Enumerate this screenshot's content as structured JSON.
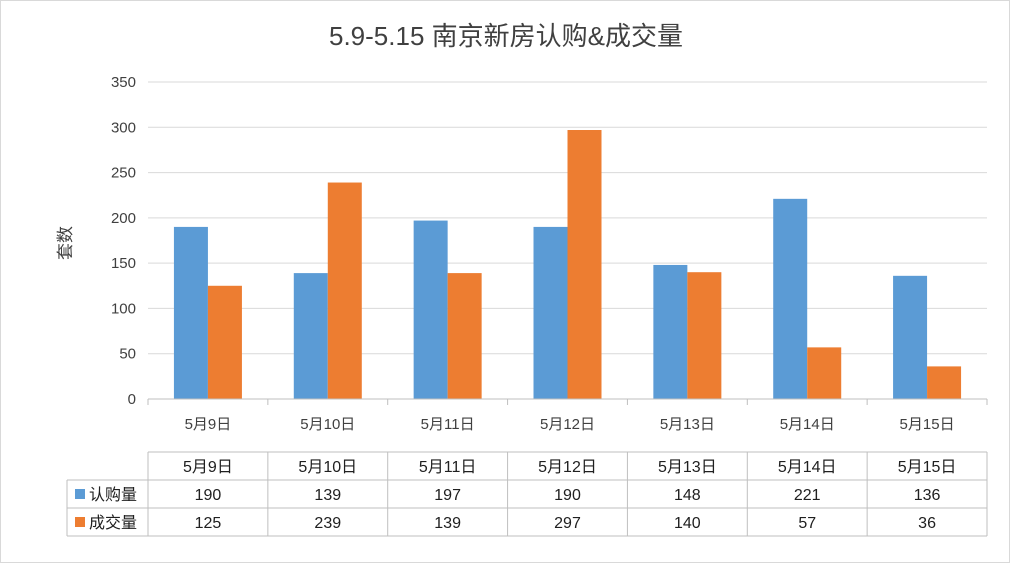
{
  "chart_data": {
    "type": "bar",
    "title": "5.9-5.15 南京新房认购&成交量",
    "ylabel": "套数",
    "xlabel": "",
    "ylim": [
      0,
      350
    ],
    "yticks": [
      0,
      50,
      100,
      150,
      200,
      250,
      300,
      350
    ],
    "grid": true,
    "legend": "table",
    "categories": [
      "5月9日",
      "5月10日",
      "5月11日",
      "5月12日",
      "5月13日",
      "5月14日",
      "5月15日"
    ],
    "series": [
      {
        "name": "认购量",
        "color": "#5b9bd5",
        "values": [
          190,
          139,
          197,
          190,
          148,
          221,
          136
        ]
      },
      {
        "name": "成交量",
        "color": "#ed7d31",
        "values": [
          125,
          239,
          139,
          297,
          140,
          57,
          36
        ]
      }
    ]
  }
}
